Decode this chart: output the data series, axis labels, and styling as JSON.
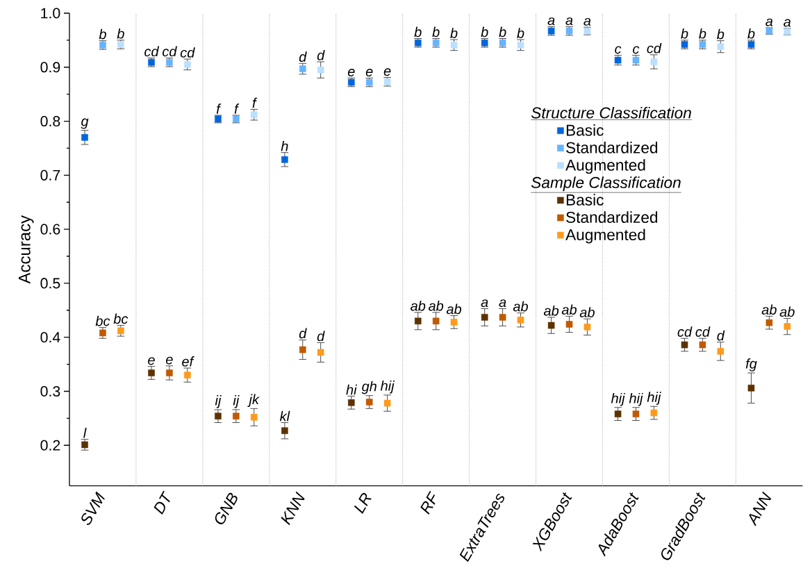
{
  "chart_data": {
    "type": "scatter",
    "ylabel": "Accuracy",
    "categories": [
      "SVM",
      "DT",
      "GNB",
      "KNN",
      "LR",
      "RF",
      "ExtraTrees",
      "XGBoost",
      "AdaBoost",
      "GradBoost",
      "ANN"
    ],
    "ylim": [
      0.125,
      1.0
    ],
    "yticks": [
      0.2,
      0.3,
      0.4,
      0.5,
      0.6,
      0.7,
      0.8,
      0.9,
      {
        "value": 1.0,
        "label": "1.0"
      }
    ],
    "marker": "square",
    "grid": "x",
    "legend": "right",
    "annotations": [
      "Structure Classification",
      "Sample Classification"
    ],
    "series": [
      {
        "name": "Basic",
        "color": "#0066dd",
        "values": [
          0.77,
          0.909,
          0.804,
          0.729,
          0.872,
          0.945,
          0.945,
          0.967,
          0.913,
          0.942,
          0.942
        ],
        "errors": [
          0.013,
          0.008,
          0.007,
          0.013,
          0.008,
          0.008,
          0.008,
          0.008,
          0.009,
          0.008,
          0.008
        ],
        "value_labels": [
          "g",
          "cd",
          "f",
          "h",
          "e",
          "b",
          "b",
          "a",
          "c",
          "b",
          "b"
        ]
      },
      {
        "name": "Standardized",
        "color": "#66b3ff",
        "values": [
          0.941,
          0.909,
          0.804,
          0.897,
          0.872,
          0.945,
          0.945,
          0.967,
          0.913,
          0.942,
          0.967
        ],
        "errors": [
          0.008,
          0.008,
          0.007,
          0.01,
          0.008,
          0.008,
          0.008,
          0.008,
          0.009,
          0.008,
          0.006
        ],
        "value_labels": [
          "b",
          "cd",
          "f",
          "d",
          "e",
          "b",
          "b",
          "a",
          "c",
          "b",
          "a"
        ]
      },
      {
        "name": "Augmented",
        "color": "#bbdfff",
        "values": [
          0.942,
          0.905,
          0.812,
          0.895,
          0.873,
          0.941,
          0.941,
          0.967,
          0.91,
          0.938,
          0.966
        ],
        "errors": [
          0.008,
          0.01,
          0.01,
          0.015,
          0.008,
          0.01,
          0.01,
          0.007,
          0.013,
          0.011,
          0.006
        ],
        "value_labels": [
          "b",
          "cd",
          "f",
          "d",
          "e",
          "b",
          "b",
          "a",
          "cd",
          "b",
          "a"
        ]
      },
      {
        "name": "Basic",
        "color": "#5c3300",
        "values": [
          0.201,
          0.334,
          0.254,
          0.227,
          0.279,
          0.43,
          0.437,
          0.422,
          0.258,
          0.386,
          0.306
        ],
        "errors": [
          0.01,
          0.012,
          0.012,
          0.015,
          0.012,
          0.016,
          0.016,
          0.015,
          0.012,
          0.012,
          0.028
        ],
        "value_labels": [
          "l",
          "e",
          "ij",
          "kl",
          "hi",
          "ab",
          "a",
          "ab",
          "hij",
          "cd",
          "fg"
        ]
      },
      {
        "name": "Standardized",
        "color": "#c05a00",
        "values": [
          0.408,
          0.334,
          0.254,
          0.377,
          0.28,
          0.43,
          0.437,
          0.424,
          0.258,
          0.386,
          0.427
        ],
        "errors": [
          0.01,
          0.013,
          0.012,
          0.018,
          0.012,
          0.016,
          0.016,
          0.015,
          0.012,
          0.012,
          0.012
        ],
        "value_labels": [
          "bc",
          "e",
          "ij",
          "d",
          "gh",
          "ab",
          "a",
          "ab",
          "hij",
          "cd",
          "ab"
        ]
      },
      {
        "name": "Augmented",
        "color": "#ff9a1a",
        "values": [
          0.412,
          0.33,
          0.252,
          0.372,
          0.278,
          0.428,
          0.432,
          0.419,
          0.26,
          0.374,
          0.42
        ],
        "errors": [
          0.01,
          0.013,
          0.016,
          0.018,
          0.015,
          0.012,
          0.013,
          0.015,
          0.012,
          0.017,
          0.015
        ],
        "value_labels": [
          "bc",
          "ef",
          "jk",
          "d",
          "hij",
          "ab",
          "ab",
          "ab",
          "hij",
          "d",
          "ab"
        ]
      }
    ]
  }
}
